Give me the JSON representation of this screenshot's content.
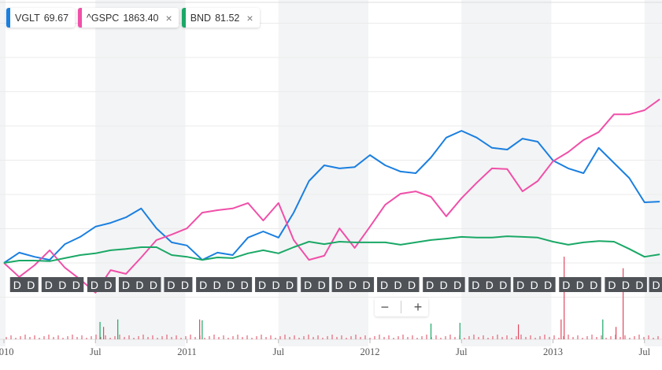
{
  "legend": [
    {
      "symbol": "VGLT",
      "value": "69.67",
      "color": "#1a7fe0",
      "removable": false
    },
    {
      "symbol": "^GSPC",
      "value": "1863.40",
      "color": "#f04fa8",
      "removable": true
    },
    {
      "symbol": "BND",
      "value": "81.52",
      "color": "#1aa866",
      "removable": true
    }
  ],
  "remove_icon": "×",
  "zoom_controls": {
    "minus": "−",
    "plus": "+"
  },
  "dividend_label": "D",
  "colors": {
    "dividend_badge": "#4f5358",
    "shaded_band": "#f3f4f5",
    "grid": "#ebebeb",
    "volume_up": "#1aa866",
    "volume_down": "#e0475e"
  },
  "chart_data": {
    "type": "line",
    "x_ticks": [
      {
        "label": "2010",
        "date": "2010-01-01"
      },
      {
        "label": "Jul",
        "date": "2010-07-01"
      },
      {
        "label": "2011",
        "date": "2011-01-01"
      },
      {
        "label": "Jul",
        "date": "2011-07-01"
      },
      {
        "label": "2012",
        "date": "2012-01-01"
      },
      {
        "label": "Jul",
        "date": "2012-07-01"
      },
      {
        "label": "2013",
        "date": "2013-01-01"
      },
      {
        "label": "Jul",
        "date": "2013-07-01"
      }
    ],
    "y_unit": "% change",
    "ylim": [
      -12,
      72
    ],
    "grid": true,
    "x": [
      "2010-01",
      "2010-02",
      "2010-03",
      "2010-04",
      "2010-05",
      "2010-06",
      "2010-07",
      "2010-08",
      "2010-09",
      "2010-10",
      "2010-11",
      "2010-12",
      "2011-01",
      "2011-02",
      "2011-03",
      "2011-04",
      "2011-05",
      "2011-06",
      "2011-07",
      "2011-08",
      "2011-09",
      "2011-10",
      "2011-11",
      "2011-12",
      "2012-01",
      "2012-02",
      "2012-03",
      "2012-04",
      "2012-05",
      "2012-06",
      "2012-07",
      "2012-08",
      "2012-09",
      "2012-10",
      "2012-11",
      "2012-12",
      "2013-01",
      "2013-02",
      "2013-03",
      "2013-04",
      "2013-05",
      "2013-06",
      "2013-07",
      "2013-08"
    ],
    "series": [
      {
        "name": "VGLT",
        "color": "#1a7fe0",
        "values": [
          0,
          3.0,
          1.8,
          0.9,
          5.5,
          7.6,
          10.6,
          11.7,
          13.3,
          15.9,
          10.1,
          6.0,
          5.1,
          0.9,
          3.0,
          2.3,
          7.4,
          9.2,
          7.4,
          14.7,
          23.9,
          28.5,
          27.6,
          28.0,
          31.5,
          28.5,
          26.7,
          26.2,
          30.8,
          36.6,
          38.6,
          36.6,
          33.6,
          33.1,
          36.3,
          35.4,
          29.9,
          27.6,
          26.2,
          33.6,
          29.2,
          24.8,
          17.7,
          17.9
        ]
      },
      {
        "name": "^GSPC",
        "color": "#f04fa8",
        "values": [
          0,
          -4.1,
          -0.7,
          3.7,
          -1.4,
          -4.8,
          -8.7,
          -2.1,
          -3.2,
          1.6,
          6.7,
          8.3,
          10.1,
          14.7,
          15.4,
          15.9,
          17.5,
          12.4,
          17.5,
          6.7,
          0.9,
          2.1,
          10.1,
          4.4,
          10.6,
          17.0,
          20.2,
          20.9,
          19.3,
          13.6,
          18.9,
          23.4,
          27.6,
          27.4,
          20.9,
          23.9,
          29.7,
          32.4,
          35.9,
          38.2,
          43.4,
          43.4,
          44.6,
          47.8
        ]
      },
      {
        "name": "BND",
        "color": "#1aa866",
        "values": [
          0,
          0.7,
          0.7,
          0.5,
          1.4,
          2.3,
          2.8,
          3.7,
          4.1,
          4.6,
          4.6,
          2.3,
          1.8,
          0.9,
          1.6,
          1.4,
          2.8,
          3.7,
          2.8,
          4.6,
          6.2,
          5.5,
          6.2,
          6.0,
          6.0,
          6.0,
          5.3,
          6.0,
          6.7,
          7.1,
          7.6,
          7.4,
          7.4,
          7.8,
          7.6,
          7.4,
          6.2,
          5.3,
          6.0,
          6.4,
          6.2,
          4.1,
          1.8,
          2.5
        ]
      }
    ],
    "dividend_markers": [
      {
        "date": "2010-01-13",
        "count": 2
      },
      {
        "date": "2010-03-15",
        "count": 3
      },
      {
        "date": "2010-06-15",
        "count": 2
      },
      {
        "date": "2010-08-17",
        "count": 3
      },
      {
        "date": "2010-11-16",
        "count": 2
      },
      {
        "date": "2011-01-19",
        "count": 4
      },
      {
        "date": "2011-05-15",
        "count": 3
      },
      {
        "date": "2011-08-15",
        "count": 2
      },
      {
        "date": "2011-10-16",
        "count": 3
      },
      {
        "date": "2012-01-15",
        "count": 3
      },
      {
        "date": "2012-04-15",
        "count": 3
      },
      {
        "date": "2012-07-15",
        "count": 3
      },
      {
        "date": "2012-10-13",
        "count": 3
      },
      {
        "date": "2013-01-13",
        "count": 3
      },
      {
        "date": "2013-04-13",
        "count": 3
      },
      {
        "date": "2013-07-10",
        "count": 1
      }
    ],
    "volume_relative": [
      {
        "date": "2010-07-10",
        "v": 0.21,
        "up": true
      },
      {
        "date": "2010-07-17",
        "v": 0.15,
        "up": false
      },
      {
        "date": "2010-08-15",
        "v": 0.24,
        "up": true
      },
      {
        "date": "2011-01-26",
        "v": 0.24,
        "up": false
      },
      {
        "date": "2011-02-01",
        "v": 0.23,
        "up": true
      },
      {
        "date": "2012-05-01",
        "v": 0.19,
        "up": true
      },
      {
        "date": "2012-06-28",
        "v": 0.2,
        "up": true
      },
      {
        "date": "2012-10-23",
        "v": 0.18,
        "up": false
      },
      {
        "date": "2013-01-17",
        "v": 0.24,
        "up": false
      },
      {
        "date": "2013-01-23",
        "v": 1.0,
        "up": false
      },
      {
        "date": "2013-04-09",
        "v": 0.24,
        "up": true
      },
      {
        "date": "2013-05-05",
        "v": 0.15,
        "up": false
      },
      {
        "date": "2013-05-19",
        "v": 0.86,
        "up": false
      }
    ]
  }
}
